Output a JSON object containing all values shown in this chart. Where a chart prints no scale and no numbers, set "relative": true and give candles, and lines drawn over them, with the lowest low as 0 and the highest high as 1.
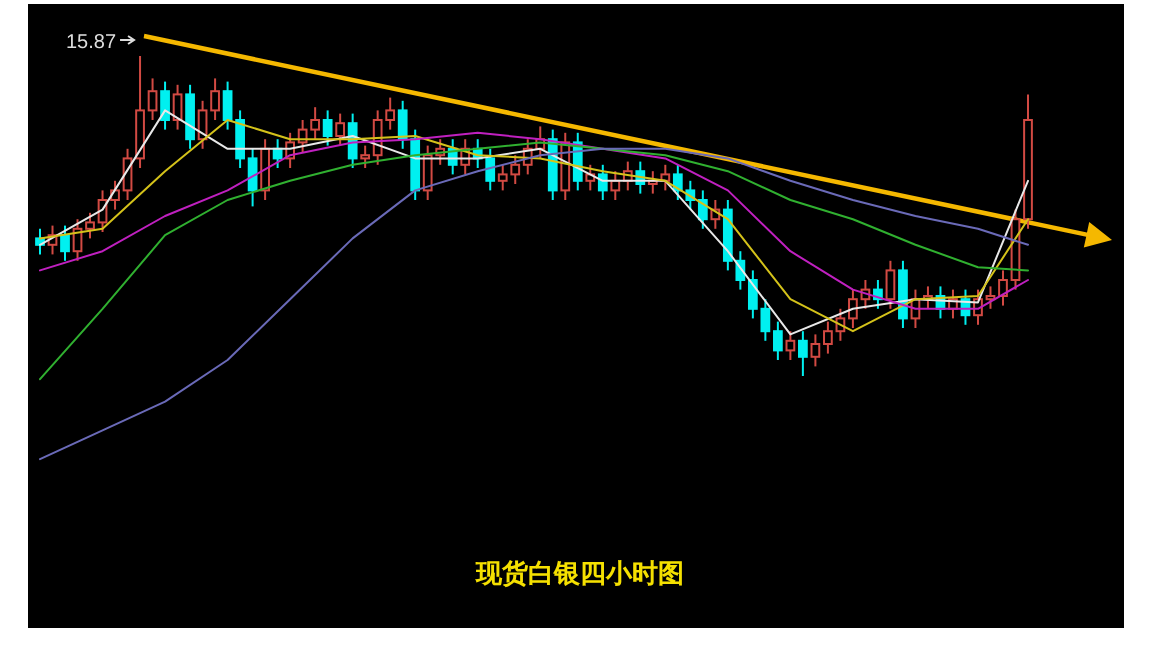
{
  "chart_data": {
    "type": "candlestick",
    "relative": true,
    "title": "现货白银四小时图",
    "categories": [
      null,
      null,
      null,
      null,
      null,
      null,
      null,
      null,
      null,
      null,
      null,
      null,
      null,
      null,
      null,
      null,
      null,
      null,
      null,
      null,
      null,
      null,
      null,
      null,
      null,
      null,
      null,
      null,
      null,
      null,
      null,
      null,
      null,
      null,
      null,
      null,
      null,
      null,
      null,
      null,
      null,
      null,
      null,
      null,
      null,
      null,
      null,
      null,
      null,
      null,
      null,
      null,
      null,
      null,
      null,
      null,
      null,
      null,
      null,
      null,
      null,
      null,
      null,
      null,
      null,
      null,
      null,
      null,
      null,
      null,
      null,
      null,
      null,
      null,
      null,
      null,
      null,
      null,
      null,
      null
    ],
    "ohlc": [
      [
        0.43,
        0.46,
        0.38,
        0.41
      ],
      [
        0.41,
        0.47,
        0.38,
        0.44
      ],
      [
        0.44,
        0.47,
        0.36,
        0.39
      ],
      [
        0.39,
        0.49,
        0.36,
        0.46
      ],
      [
        0.46,
        0.51,
        0.43,
        0.48
      ],
      [
        0.48,
        0.58,
        0.45,
        0.55
      ],
      [
        0.55,
        0.61,
        0.52,
        0.58
      ],
      [
        0.58,
        0.71,
        0.55,
        0.68
      ],
      [
        0.68,
        1.0,
        0.65,
        0.83
      ],
      [
        0.83,
        0.93,
        0.8,
        0.89
      ],
      [
        0.89,
        0.92,
        0.77,
        0.8
      ],
      [
        0.8,
        0.91,
        0.77,
        0.88
      ],
      [
        0.88,
        0.91,
        0.71,
        0.74
      ],
      [
        0.74,
        0.86,
        0.71,
        0.83
      ],
      [
        0.83,
        0.93,
        0.8,
        0.89
      ],
      [
        0.89,
        0.92,
        0.77,
        0.8
      ],
      [
        0.8,
        0.83,
        0.65,
        0.68
      ],
      [
        0.68,
        0.71,
        0.53,
        0.58
      ],
      [
        0.58,
        0.74,
        0.55,
        0.71
      ],
      [
        0.71,
        0.74,
        0.65,
        0.68
      ],
      [
        0.68,
        0.76,
        0.65,
        0.73
      ],
      [
        0.73,
        0.8,
        0.7,
        0.77
      ],
      [
        0.77,
        0.84,
        0.74,
        0.8
      ],
      [
        0.8,
        0.83,
        0.72,
        0.75
      ],
      [
        0.75,
        0.82,
        0.72,
        0.79
      ],
      [
        0.79,
        0.82,
        0.65,
        0.68
      ],
      [
        0.68,
        0.72,
        0.65,
        0.69
      ],
      [
        0.69,
        0.83,
        0.66,
        0.8
      ],
      [
        0.8,
        0.87,
        0.77,
        0.83
      ],
      [
        0.83,
        0.86,
        0.71,
        0.74
      ],
      [
        0.74,
        0.77,
        0.55,
        0.58
      ],
      [
        0.58,
        0.72,
        0.55,
        0.69
      ],
      [
        0.69,
        0.74,
        0.66,
        0.71
      ],
      [
        0.71,
        0.74,
        0.63,
        0.66
      ],
      [
        0.66,
        0.74,
        0.63,
        0.71
      ],
      [
        0.71,
        0.74,
        0.65,
        0.68
      ],
      [
        0.68,
        0.71,
        0.58,
        0.61
      ],
      [
        0.61,
        0.66,
        0.58,
        0.63
      ],
      [
        0.63,
        0.69,
        0.6,
        0.66
      ],
      [
        0.66,
        0.74,
        0.63,
        0.71
      ],
      [
        0.71,
        0.78,
        0.68,
        0.74
      ],
      [
        0.74,
        0.77,
        0.55,
        0.58
      ],
      [
        0.58,
        0.76,
        0.55,
        0.73
      ],
      [
        0.73,
        0.76,
        0.58,
        0.61
      ],
      [
        0.61,
        0.66,
        0.58,
        0.63
      ],
      [
        0.63,
        0.66,
        0.55,
        0.58
      ],
      [
        0.58,
        0.64,
        0.55,
        0.61
      ],
      [
        0.61,
        0.67,
        0.58,
        0.64
      ],
      [
        0.64,
        0.67,
        0.57,
        0.6
      ],
      [
        0.6,
        0.64,
        0.57,
        0.61
      ],
      [
        0.61,
        0.66,
        0.58,
        0.63
      ],
      [
        0.63,
        0.66,
        0.55,
        0.58
      ],
      [
        0.58,
        0.61,
        0.52,
        0.55
      ],
      [
        0.55,
        0.58,
        0.46,
        0.49
      ],
      [
        0.49,
        0.55,
        0.46,
        0.52
      ],
      [
        0.52,
        0.55,
        0.33,
        0.36
      ],
      [
        0.36,
        0.39,
        0.27,
        0.3
      ],
      [
        0.3,
        0.33,
        0.18,
        0.21
      ],
      [
        0.21,
        0.24,
        0.11,
        0.14
      ],
      [
        0.14,
        0.17,
        0.05,
        0.08
      ],
      [
        0.08,
        0.14,
        0.05,
        0.11
      ],
      [
        0.11,
        0.14,
        0.0,
        0.06
      ],
      [
        0.06,
        0.13,
        0.03,
        0.1
      ],
      [
        0.1,
        0.17,
        0.07,
        0.14
      ],
      [
        0.14,
        0.21,
        0.11,
        0.18
      ],
      [
        0.18,
        0.27,
        0.15,
        0.24
      ],
      [
        0.24,
        0.3,
        0.21,
        0.27
      ],
      [
        0.27,
        0.3,
        0.21,
        0.24
      ],
      [
        0.24,
        0.36,
        0.21,
        0.33
      ],
      [
        0.33,
        0.36,
        0.15,
        0.18
      ],
      [
        0.18,
        0.27,
        0.15,
        0.24
      ],
      [
        0.24,
        0.28,
        0.21,
        0.25
      ],
      [
        0.25,
        0.28,
        0.18,
        0.21
      ],
      [
        0.21,
        0.27,
        0.18,
        0.24
      ],
      [
        0.24,
        0.27,
        0.16,
        0.19
      ],
      [
        0.19,
        0.27,
        0.16,
        0.24
      ],
      [
        0.24,
        0.28,
        0.21,
        0.25
      ],
      [
        0.25,
        0.33,
        0.22,
        0.3
      ],
      [
        0.3,
        0.52,
        0.27,
        0.49
      ],
      [
        0.49,
        0.88,
        0.46,
        0.8
      ]
    ],
    "series": [
      {
        "type": "line",
        "color": "#e8e8e8",
        "values": [
          0.41,
          null,
          null,
          null,
          null,
          0.52,
          null,
          null,
          null,
          null,
          0.83,
          null,
          null,
          null,
          null,
          0.71,
          null,
          null,
          null,
          null,
          0.71,
          null,
          null,
          null,
          null,
          0.75,
          null,
          null,
          null,
          null,
          0.68,
          null,
          null,
          null,
          null,
          0.68,
          null,
          null,
          null,
          null,
          0.71,
          null,
          null,
          null,
          null,
          0.61,
          null,
          null,
          null,
          null,
          0.61,
          null,
          null,
          null,
          null,
          0.39,
          null,
          null,
          null,
          null,
          0.13,
          null,
          null,
          null,
          null,
          0.21,
          null,
          null,
          null,
          null,
          0.24,
          null,
          null,
          null,
          null,
          0.23,
          null,
          null,
          null,
          0.61
        ]
      },
      {
        "type": "line",
        "color": "#d4c21a",
        "values": [
          0.43,
          null,
          null,
          null,
          null,
          0.46,
          null,
          null,
          null,
          null,
          0.64,
          null,
          null,
          null,
          null,
          0.8,
          null,
          null,
          null,
          null,
          0.74,
          null,
          null,
          null,
          null,
          0.74,
          null,
          null,
          null,
          null,
          0.75,
          null,
          null,
          null,
          null,
          0.69,
          null,
          null,
          null,
          null,
          0.68,
          null,
          null,
          null,
          null,
          0.64,
          null,
          null,
          null,
          null,
          0.61,
          null,
          null,
          null,
          null,
          0.49,
          null,
          null,
          null,
          null,
          0.24,
          null,
          null,
          null,
          null,
          0.14,
          null,
          null,
          null,
          null,
          0.24,
          null,
          null,
          null,
          null,
          0.25,
          null,
          null,
          null,
          0.49
        ]
      },
      {
        "type": "line",
        "color": "#c020c0",
        "values": [
          0.33,
          null,
          null,
          null,
          null,
          0.39,
          null,
          null,
          null,
          null,
          0.5,
          null,
          null,
          null,
          null,
          0.58,
          null,
          null,
          null,
          null,
          0.69,
          null,
          null,
          null,
          null,
          0.73,
          null,
          null,
          null,
          null,
          0.74,
          null,
          null,
          null,
          null,
          0.76,
          null,
          null,
          null,
          null,
          0.74,
          null,
          null,
          null,
          null,
          0.71,
          null,
          null,
          null,
          null,
          0.68,
          null,
          null,
          null,
          null,
          0.58,
          null,
          null,
          null,
          null,
          0.39,
          null,
          null,
          null,
          null,
          0.27,
          null,
          null,
          null,
          null,
          0.21,
          null,
          null,
          null,
          null,
          0.21,
          null,
          null,
          null,
          0.3
        ]
      },
      {
        "type": "line",
        "color": "#30b030",
        "values": [
          -0.01,
          null,
          null,
          null,
          null,
          0.21,
          null,
          null,
          null,
          null,
          0.44,
          null,
          null,
          null,
          null,
          0.55,
          null,
          null,
          null,
          null,
          0.61,
          null,
          null,
          null,
          null,
          0.66,
          null,
          null,
          null,
          null,
          0.69,
          null,
          null,
          null,
          null,
          0.71,
          null,
          null,
          null,
          null,
          0.73,
          null,
          null,
          null,
          null,
          0.71,
          null,
          null,
          null,
          null,
          0.69,
          null,
          null,
          null,
          null,
          0.64,
          null,
          null,
          null,
          null,
          0.55,
          null,
          null,
          null,
          null,
          0.49,
          null,
          null,
          null,
          null,
          0.41,
          null,
          null,
          null,
          null,
          0.34,
          null,
          null,
          null,
          0.33
        ]
      },
      {
        "type": "line",
        "color": "#6a6ab8",
        "values": [
          -0.26,
          null,
          null,
          null,
          null,
          -0.17,
          null,
          null,
          null,
          null,
          -0.08,
          null,
          null,
          null,
          null,
          0.05,
          null,
          null,
          null,
          null,
          0.24,
          null,
          null,
          null,
          null,
          0.43,
          null,
          null,
          null,
          null,
          0.58,
          null,
          null,
          null,
          null,
          0.64,
          null,
          null,
          null,
          null,
          0.69,
          null,
          null,
          null,
          null,
          0.71,
          null,
          null,
          null,
          null,
          0.71,
          null,
          null,
          null,
          null,
          0.68,
          null,
          null,
          null,
          null,
          0.61,
          null,
          null,
          null,
          null,
          0.55,
          null,
          null,
          null,
          null,
          0.5,
          null,
          null,
          null,
          null,
          0.46,
          null,
          null,
          null,
          0.41
        ]
      }
    ],
    "annotations": [
      "15.87"
    ]
  }
}
